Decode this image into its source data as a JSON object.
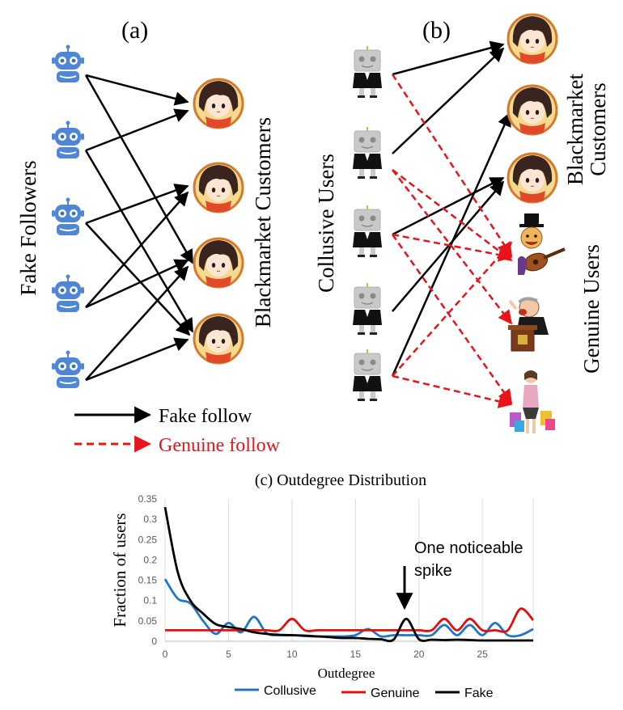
{
  "panel_a": {
    "label": "(a)",
    "left_group_label": "Fake Followers",
    "right_group_label": "Blackmarket Customers"
  },
  "panel_b": {
    "label": "(b)",
    "left_group_label": "Collusive Users",
    "right_group_label_line1": "Blackmarket",
    "right_group_label_line2": "Customers",
    "genuine_group_label": "Genuine Users"
  },
  "legend_top": {
    "fake_follow": "Fake follow",
    "genuine_follow": "Genuine follow"
  },
  "colors": {
    "fake_follow": "#000000",
    "genuine_follow": "#e8141b",
    "robot_blue": "#4f86d6",
    "robot_gray": "#c8c8c8",
    "collusive": "#1f77c4",
    "genuine": "#e01010",
    "fake": "#000000"
  },
  "chart_data": {
    "type": "line",
    "title": "(c) Outdegree Distribution",
    "xlabel": "Outdegree",
    "ylabel": "Fraction of users",
    "xlim": [
      0,
      29
    ],
    "ylim": [
      0,
      0.35
    ],
    "x_ticks": [
      "0",
      "5",
      "10",
      "15",
      "20",
      "25"
    ],
    "y_ticks": [
      "0",
      "0.05",
      "0.1",
      "0.15",
      "0.2",
      "0.25",
      "0.3",
      "0.35"
    ],
    "grid": "vertical",
    "legend_position": "bottom",
    "annotation": {
      "line1": "One noticeable",
      "line2": "spike",
      "x": 19,
      "y": 0.055
    },
    "series": [
      {
        "name": "Collusive",
        "x": [
          0,
          1,
          2,
          3,
          4,
          5,
          6,
          7,
          8,
          9,
          10,
          11,
          12,
          13,
          14,
          15,
          16,
          17,
          18,
          19,
          20,
          21,
          22,
          23,
          24,
          25,
          26,
          27,
          28,
          29
        ],
        "values": [
          0.153,
          0.105,
          0.093,
          0.05,
          0.018,
          0.045,
          0.022,
          0.06,
          0.02,
          0.015,
          0.015,
          0.013,
          0.012,
          0.012,
          0.012,
          0.015,
          0.03,
          0.012,
          0.015,
          0.015,
          0.015,
          0.015,
          0.04,
          0.015,
          0.04,
          0.015,
          0.045,
          0.015,
          0.015,
          0.03
        ]
      },
      {
        "name": "Genuine",
        "x": [
          0,
          1,
          2,
          3,
          4,
          5,
          6,
          7,
          8,
          9,
          10,
          11,
          12,
          13,
          14,
          15,
          16,
          17,
          18,
          19,
          20,
          21,
          22,
          23,
          24,
          25,
          26,
          27,
          28,
          29
        ],
        "values": [
          0.027,
          0.027,
          0.027,
          0.027,
          0.027,
          0.027,
          0.027,
          0.027,
          0.027,
          0.027,
          0.055,
          0.027,
          0.027,
          0.027,
          0.027,
          0.027,
          0.027,
          0.027,
          0.027,
          0.027,
          0.027,
          0.027,
          0.055,
          0.027,
          0.055,
          0.027,
          0.027,
          0.027,
          0.08,
          0.052
        ]
      },
      {
        "name": "Fake",
        "x": [
          0,
          1,
          2,
          3,
          4,
          5,
          6,
          7,
          8,
          9,
          10,
          11,
          12,
          13,
          14,
          15,
          16,
          17,
          18,
          19,
          20,
          21,
          22,
          23,
          24,
          25,
          26,
          27,
          28,
          29
        ],
        "values": [
          0.33,
          0.17,
          0.1,
          0.068,
          0.042,
          0.035,
          0.03,
          0.022,
          0.018,
          0.016,
          0.015,
          0.014,
          0.012,
          0.01,
          0.008,
          0.008,
          0.006,
          0.005,
          0.004,
          0.055,
          0.005,
          0.004,
          0.003,
          0.004,
          0.003,
          0.002,
          0.002,
          0.002,
          0.002,
          0.002
        ]
      }
    ]
  }
}
